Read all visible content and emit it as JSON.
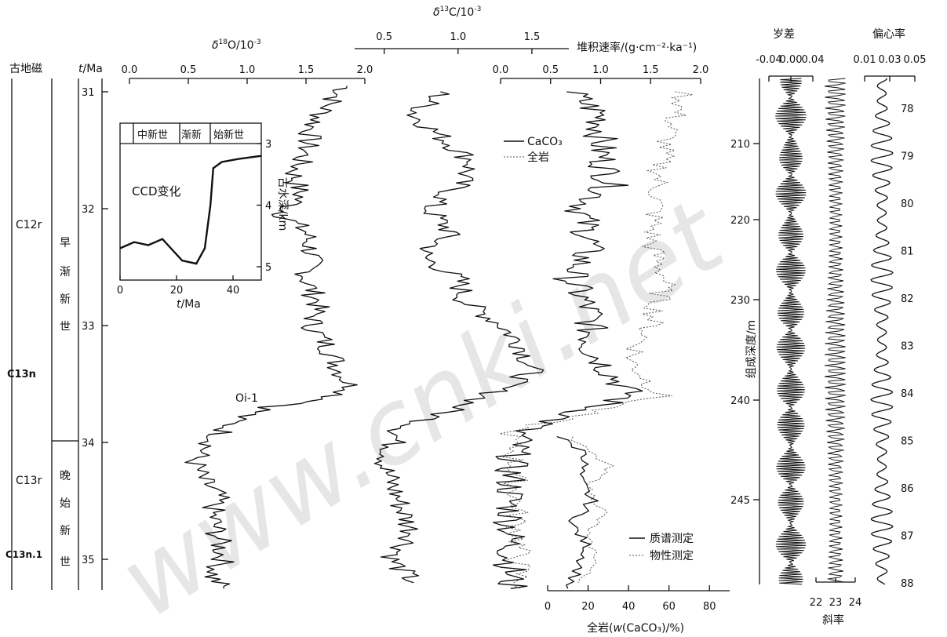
{
  "chart_data": {
    "type": "line",
    "time_axis": {
      "label_t": "t",
      "label_unit": "/Ma",
      "ticks": [
        "31",
        "32",
        "33",
        "34",
        "35"
      ]
    },
    "magnetostratigraphy": {
      "header": "古地磁",
      "chrons": [
        "C12r",
        "C13n",
        "C13r",
        "C13n.1"
      ],
      "epochs": [
        {
          "chars": [
            "早",
            "渐",
            "新",
            "世"
          ],
          "range_ma": [
            31,
            33.9
          ]
        },
        {
          "chars": [
            "晚",
            "始",
            "新",
            "世"
          ],
          "range_ma": [
            33.9,
            35.3
          ]
        }
      ]
    },
    "d18O": {
      "label_prefix": "δ",
      "label_sup": "18",
      "label_suffix": "O/10",
      "label_exp": "-3",
      "ticks": [
        "0.0",
        "0.5",
        "1.0",
        "1.5",
        "2.0"
      ],
      "xlim": [
        0,
        2
      ],
      "event_label": "Oi-1",
      "points": [
        [
          1.85,
          30.95
        ],
        [
          1.7,
          31.1
        ],
        [
          1.55,
          31.3
        ],
        [
          1.5,
          31.5
        ],
        [
          1.4,
          31.7
        ],
        [
          1.45,
          31.9
        ],
        [
          1.3,
          32.05
        ],
        [
          1.5,
          32.2
        ],
        [
          1.55,
          32.4
        ],
        [
          1.5,
          32.6
        ],
        [
          1.6,
          32.8
        ],
        [
          1.55,
          33.0
        ],
        [
          1.7,
          33.2
        ],
        [
          1.8,
          33.4
        ],
        [
          1.9,
          33.55
        ],
        [
          1.6,
          33.65
        ],
        [
          1.2,
          33.7
        ],
        [
          0.9,
          33.8
        ],
        [
          0.75,
          33.95
        ],
        [
          0.55,
          34.15
        ],
        [
          0.6,
          34.3
        ],
        [
          0.75,
          34.45
        ],
        [
          0.7,
          34.6
        ],
        [
          0.75,
          34.8
        ],
        [
          0.8,
          35.0
        ],
        [
          0.7,
          35.15
        ],
        [
          0.8,
          35.25
        ]
      ]
    },
    "ccd_inset": {
      "title": "CCD变化",
      "epoch_labels": [
        "中新世",
        "渐新",
        "始新世"
      ],
      "xlabel_t": "t",
      "xlabel_unit": "/Ma",
      "ylabel": "古水深/km",
      "xticks": [
        "0",
        "20",
        "40"
      ],
      "yticks": [
        "3",
        "4",
        "5"
      ],
      "xlim": [
        0,
        50
      ],
      "ylim": [
        3,
        5
      ],
      "points": [
        [
          0,
          4.7
        ],
        [
          5,
          4.6
        ],
        [
          10,
          4.65
        ],
        [
          15,
          4.55
        ],
        [
          18,
          4.7
        ],
        [
          22,
          4.9
        ],
        [
          27,
          4.95
        ],
        [
          30,
          4.7
        ],
        [
          32,
          4.0
        ],
        [
          33,
          3.4
        ],
        [
          36,
          3.3
        ],
        [
          42,
          3.25
        ],
        [
          50,
          3.2
        ]
      ]
    },
    "d13C": {
      "label_prefix": "δ",
      "label_sup": "13",
      "label_suffix": "C/10",
      "label_exp": "-3",
      "ticks": [
        "0.5",
        "1.0",
        "1.5"
      ],
      "xlim": [
        0.3,
        1.7
      ],
      "points": [
        [
          0.9,
          31.0
        ],
        [
          0.7,
          31.2
        ],
        [
          0.9,
          31.4
        ],
        [
          1.1,
          31.6
        ],
        [
          1.0,
          31.8
        ],
        [
          0.8,
          32.0
        ],
        [
          0.95,
          32.2
        ],
        [
          0.75,
          32.4
        ],
        [
          1.0,
          32.6
        ],
        [
          1.05,
          32.8
        ],
        [
          1.3,
          33.0
        ],
        [
          1.45,
          33.2
        ],
        [
          1.5,
          33.4
        ],
        [
          1.2,
          33.6
        ],
        [
          0.6,
          33.9
        ],
        [
          0.5,
          34.2
        ],
        [
          0.6,
          34.5
        ],
        [
          0.7,
          34.8
        ],
        [
          0.55,
          35.0
        ],
        [
          0.7,
          35.2
        ]
      ]
    },
    "mar": {
      "label": "堆积速率/(g·cm⁻²·ka⁻¹)",
      "ticks": [
        "0.0",
        "0.5",
        "1.0",
        "1.5",
        "2.0"
      ],
      "xlim": [
        0,
        2
      ],
      "legend": [
        "CaCO₃",
        "全岩"
      ],
      "series": [
        {
          "name": "CaCO₃",
          "points": [
            [
              0.7,
              31.0
            ],
            [
              1.0,
              31.2
            ],
            [
              1.0,
              31.5
            ],
            [
              1.1,
              31.8
            ],
            [
              0.8,
              32.0
            ],
            [
              0.9,
              32.3
            ],
            [
              0.7,
              32.6
            ],
            [
              0.9,
              32.9
            ],
            [
              0.9,
              33.2
            ],
            [
              1.3,
              33.6
            ],
            [
              0.2,
              33.9
            ],
            [
              0.1,
              34.2
            ],
            [
              0.1,
              35.25
            ]
          ]
        },
        {
          "name": "全岩",
          "points": [
            [
              1.85,
              31.0
            ],
            [
              1.7,
              31.3
            ],
            [
              1.6,
              31.6
            ],
            [
              1.55,
              32.0
            ],
            [
              1.5,
              32.3
            ],
            [
              1.65,
              32.6
            ],
            [
              1.5,
              33.0
            ],
            [
              1.3,
              33.3
            ],
            [
              1.6,
              33.6
            ],
            [
              0.1,
              33.9
            ],
            [
              0.15,
              34.3
            ],
            [
              0.2,
              35.25
            ]
          ]
        }
      ]
    },
    "caco3": {
      "label_prefix": "全岩(",
      "label_w": "w",
      "label_suffix": "(CaCO₃)/%)",
      "ticks": [
        "0",
        "20",
        "40",
        "60",
        "80"
      ],
      "xlim": [
        0,
        90
      ],
      "legend": [
        "质谱测定",
        "物性测定"
      ],
      "series": [
        {
          "name": "质谱测定",
          "points": [
            [
              5,
              33.95
            ],
            [
              20,
              34.1
            ],
            [
              15,
              34.3
            ],
            [
              22,
              34.5
            ],
            [
              12,
              34.7
            ],
            [
              20,
              34.9
            ],
            [
              15,
              35.1
            ],
            [
              10,
              35.25
            ]
          ]
        },
        {
          "name": "物性测定",
          "points": [
            [
              10,
              33.95
            ],
            [
              30,
              34.2
            ],
            [
              20,
              34.4
            ],
            [
              28,
              34.6
            ],
            [
              18,
              34.8
            ],
            [
              25,
              35.0
            ],
            [
              15,
              35.2
            ]
          ]
        }
      ]
    },
    "depth_axis": {
      "label": "组成深度/m",
      "ticks": [
        "210",
        "220",
        "230",
        "240",
        "245"
      ]
    },
    "precession": {
      "label": "岁差",
      "ticks": [
        "-0.04",
        "0.00",
        "0.04"
      ]
    },
    "obliquity": {
      "label": "斜率",
      "ticks": [
        "22",
        "23",
        "24"
      ]
    },
    "eccentricity": {
      "label": "偏心率",
      "ticks": [
        "0.01",
        "0.03",
        "0.05"
      ],
      "cycles": [
        "78",
        "79",
        "80",
        "81",
        "82",
        "83",
        "84",
        "85",
        "86",
        "87",
        "88"
      ]
    },
    "watermark": "www.cnki.net"
  }
}
